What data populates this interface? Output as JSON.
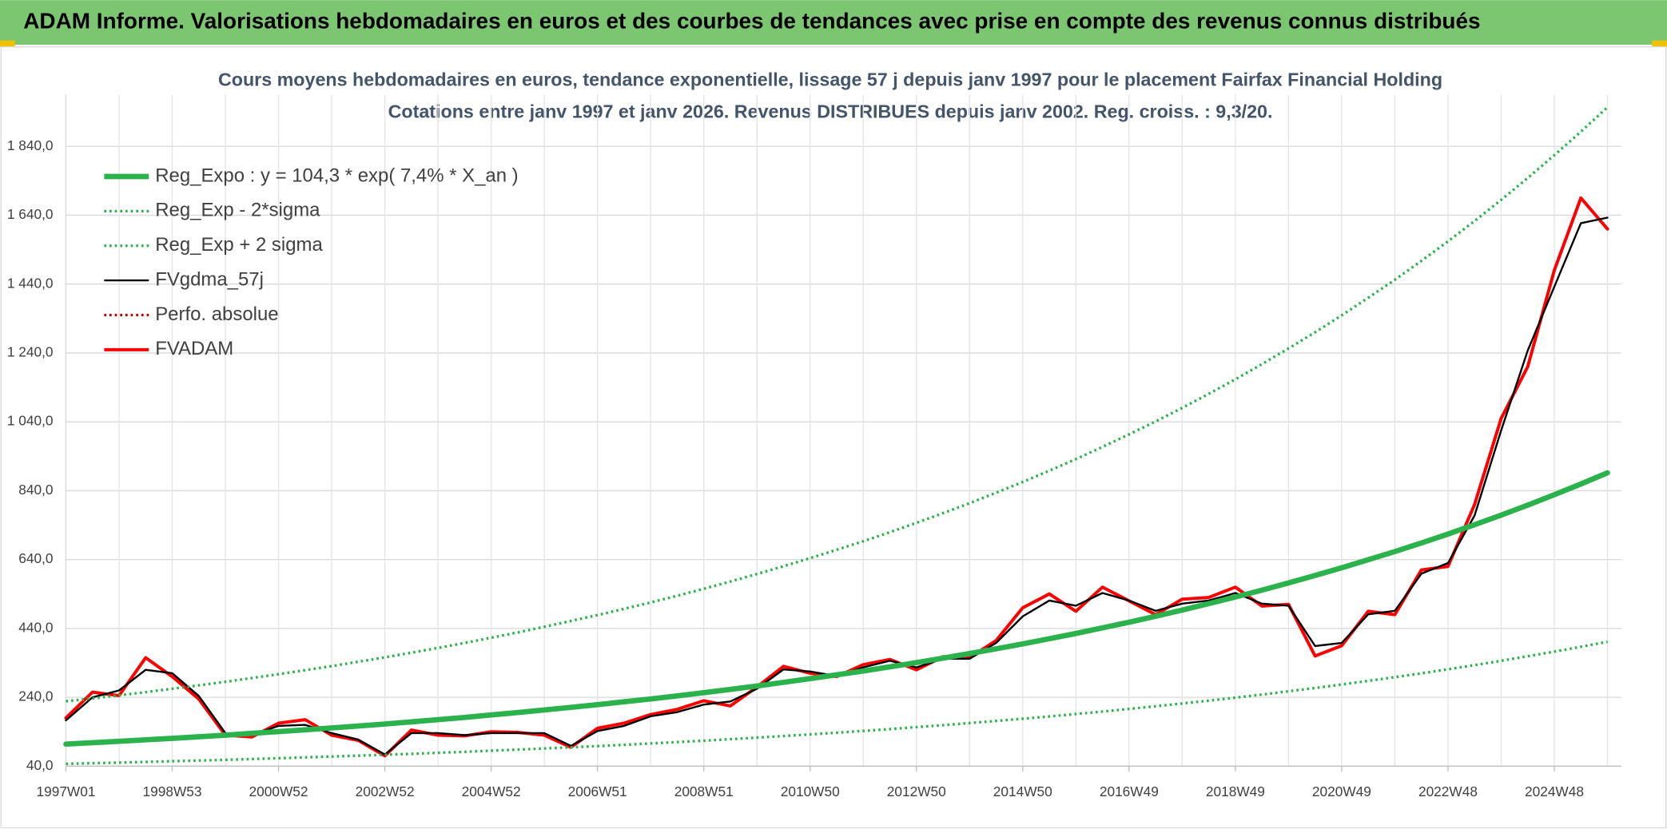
{
  "header": {
    "title": "ADAM Informe. Valorisations hebdomadaires en euros et des courbes de tendances avec prise en compte des revenus connus distribués"
  },
  "chart_data": {
    "type": "line",
    "title": "Cours moyens hebdomadaires en euros, tendance exponentielle, lissage 57 j depuis janv 1997 pour le placement Fairfax Financial Holding",
    "subtitle": "Cotations entre janv 1997 et janv 2026. Revenus DISTRIBUES depuis janv 2002. Reg. croiss. : 9,3/20.",
    "categories": [
      "1997W01",
      null,
      null,
      null,
      "1998W53",
      null,
      null,
      null,
      "2000W52",
      null,
      null,
      null,
      "2002W52",
      null,
      null,
      null,
      "2004W52",
      null,
      null,
      null,
      "2006W51",
      null,
      null,
      null,
      "2008W51",
      null,
      null,
      null,
      "2010W50",
      null,
      null,
      null,
      "2012W50",
      null,
      null,
      null,
      "2014W50",
      null,
      null,
      null,
      "2016W49",
      null,
      null,
      null,
      "2018W49",
      null,
      null,
      null,
      "2020W49",
      null,
      null,
      null,
      "2022W48",
      null,
      null,
      null,
      "2024W48",
      null,
      null
    ],
    "ylim": [
      40,
      1990
    ],
    "yticks": [
      {
        "value": 40,
        "label": "40,0"
      },
      {
        "value": 240,
        "label": "240,0"
      },
      {
        "value": 440,
        "label": "440,0"
      },
      {
        "value": 640,
        "label": "640,0"
      },
      {
        "value": 840,
        "label": "840,0"
      },
      {
        "value": 1040,
        "label": "1 040,0"
      },
      {
        "value": 1240,
        "label": "1 240,0"
      },
      {
        "value": 1440,
        "label": "1 440,0"
      },
      {
        "value": 1640,
        "label": "1 640,0"
      },
      {
        "value": 1840,
        "label": "1 840,0"
      }
    ],
    "grid": true,
    "legend": "upper left",
    "series": [
      {
        "name": "Reg_Expo : y = 104,3 * exp( 7,4% *  X_an )",
        "color": "#2bb24c",
        "line_style": "thick",
        "values": [
          104.3,
          108.2,
          112.3,
          116.5,
          120.9,
          125.5,
          130.2,
          135.2,
          140.3,
          145.6,
          151.0,
          156.7,
          162.6,
          168.7,
          175.1,
          181.7,
          188.6,
          195.7,
          203.1,
          210.8,
          218.6,
          226.9,
          235.4,
          244.3,
          253.5,
          263.1,
          273.1,
          283.4,
          294.1,
          305.2,
          316.5,
          328.5,
          340.9,
          353.7,
          367.0,
          380.9,
          395.2,
          410.1,
          425.5,
          441.6,
          458.2,
          475.5,
          493.4,
          512.0,
          531.3,
          551.4,
          572.2,
          593.7,
          616.1,
          639.4,
          663.3,
          688.3,
          714.3,
          741.2,
          769.2,
          798.2,
          828.3,
          859.6,
          892.0
        ]
      },
      {
        "name": "Reg_Exp - 2*sigma",
        "color": "#2bb24c",
        "line_style": "dotted",
        "values": [
          46.9,
          48.7,
          50.5,
          52.4,
          54.4,
          56.5,
          58.6,
          60.8,
          63.1,
          65.5,
          68.0,
          70.5,
          73.2,
          75.9,
          78.8,
          81.8,
          84.9,
          88.1,
          91.4,
          94.9,
          98.4,
          102.1,
          105.9,
          109.9,
          114.1,
          118.4,
          122.9,
          127.5,
          132.3,
          137.3,
          142.4,
          147.8,
          153.4,
          159.2,
          165.2,
          171.4,
          177.8,
          184.5,
          191.5,
          198.7,
          206.2,
          214.0,
          222.0,
          230.4,
          239.1,
          248.1,
          257.5,
          267.2,
          277.2,
          287.7,
          298.5,
          309.7,
          321.4,
          333.5,
          346.1,
          359.2,
          372.7,
          386.8,
          401.4
        ]
      },
      {
        "name": "Reg_Exp + 2 sigma",
        "color": "#2bb24c",
        "line_style": "dotted",
        "values": [
          228.4,
          237.0,
          245.9,
          255.1,
          264.8,
          274.8,
          285.1,
          296.1,
          307.3,
          318.9,
          330.7,
          343.2,
          356.1,
          369.5,
          383.5,
          397.9,
          413.0,
          428.6,
          444.8,
          461.7,
          478.7,
          496.9,
          515.5,
          535.0,
          555.2,
          576.2,
          598.1,
          620.6,
          644.1,
          668.4,
          693.1,
          719.4,
          746.6,
          774.6,
          803.7,
          834.2,
          865.5,
          898.1,
          931.8,
          967.1,
          1003.5,
          1041.3,
          1080.5,
          1121.3,
          1163.5,
          1207.6,
          1253.1,
          1300.2,
          1349.3,
          1400.3,
          1452.6,
          1507.4,
          1564.3,
          1623.2,
          1684.5,
          1748.1,
          1814.0,
          1882.5,
          1953.5
        ]
      },
      {
        "name": "FVgdma_57j",
        "color": "#000000",
        "line_style": "solid",
        "values": [
          173,
          240,
          260,
          320,
          310,
          244,
          136,
          130,
          157,
          160,
          136,
          117,
          74,
          136,
          136,
          130,
          136,
          136,
          136,
          99,
          142,
          157,
          185,
          197,
          219,
          228,
          265,
          321,
          315,
          302,
          327,
          346,
          327,
          352,
          352,
          398,
          475,
          521,
          506,
          543,
          521,
          491,
          512,
          521,
          543,
          512,
          506,
          389,
          398,
          481,
          491,
          599,
          630,
          768,
          1015,
          1247,
          1432,
          1617,
          1633
        ]
      },
      {
        "name": "Perfo. absolue",
        "color": "#c00000",
        "line_style": "dotted",
        "values": [
          null,
          null,
          null,
          null,
          null,
          null,
          null,
          null,
          null,
          null,
          null,
          null,
          null,
          null,
          null,
          null,
          null,
          null,
          null,
          null,
          null,
          null,
          null,
          null,
          null,
          null,
          null,
          null,
          null,
          null,
          null,
          null,
          null,
          null,
          null,
          null,
          null,
          null,
          null,
          null,
          null,
          null,
          null,
          null,
          null,
          null,
          null,
          null,
          null,
          null,
          null,
          null,
          null,
          null,
          null,
          null,
          null,
          null,
          null
        ]
      },
      {
        "name": "FVADAM",
        "color": "#ff0000",
        "line_style": "thick-solid",
        "values": [
          180,
          255,
          245,
          355,
          300,
          235,
          130,
          125,
          165,
          175,
          130,
          115,
          70,
          145,
          130,
          128,
          140,
          138,
          130,
          95,
          150,
          165,
          190,
          205,
          230,
          215,
          270,
          330,
          310,
          300,
          335,
          350,
          320,
          358,
          355,
          405,
          500,
          540,
          490,
          560,
          520,
          480,
          525,
          530,
          560,
          505,
          510,
          360,
          390,
          490,
          480,
          610,
          620,
          800,
          1050,
          1200,
          1480,
          1690,
          1600
        ]
      }
    ]
  }
}
